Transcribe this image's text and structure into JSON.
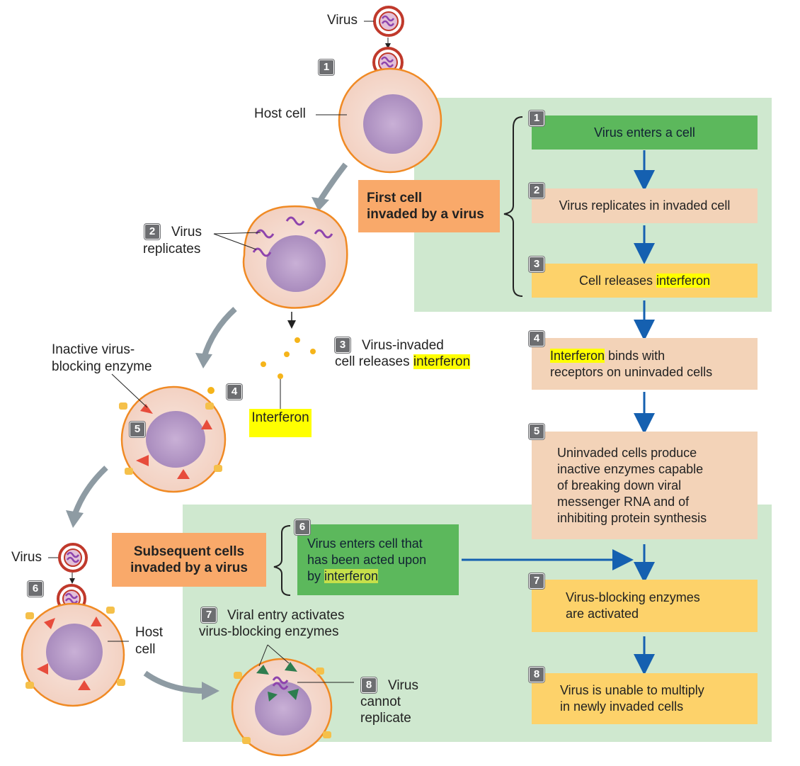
{
  "labels": {
    "virus_top": "Virus",
    "host_cell_top": "Host cell",
    "virus_replicates": [
      "Virus",
      "replicates"
    ],
    "step3_line1": "Virus-invaded",
    "step3_line2": "cell releases",
    "step3_hl": "interferon",
    "inactive_enzyme_line1": "Inactive virus-",
    "inactive_enzyme_line2": "blocking enzyme",
    "interferon": "Interferon",
    "virus_bottom": "Virus",
    "host_cell_bottom": [
      "Host",
      "cell"
    ],
    "step7_line1": "Viral entry activates",
    "step7_line2": "virus-blocking enzymes",
    "step8": [
      "Virus",
      "cannot",
      "replicate"
    ]
  },
  "badges": {
    "b1": "1",
    "b2": "2",
    "b3": "3",
    "b4": "4",
    "b5": "5",
    "b6": "6",
    "b7": "7",
    "b8": "8"
  },
  "groups": {
    "first": [
      "First cell",
      "invaded by a virus"
    ],
    "subsequent": [
      "Subsequent cells",
      "invaded by a virus"
    ]
  },
  "flow": [
    {
      "num": "1",
      "text": "Virus enters a cell"
    },
    {
      "num": "2",
      "text": "Virus replicates in invaded cell"
    },
    {
      "num": "3",
      "pre": "Cell releases ",
      "hl": "interferon"
    },
    {
      "num": "4",
      "hl": "Interferon",
      "post1": " binds with",
      "line2": "receptors on uninvaded cells"
    },
    {
      "num": "5",
      "lines": [
        "Uninvaded cells produce",
        "inactive enzymes capable",
        "of breaking down viral",
        "messenger RNA and of",
        "inhibiting protein synthesis"
      ]
    },
    {
      "num": "6",
      "lines": [
        "Virus enters cell that",
        "has been acted upon"
      ],
      "pre3": "by ",
      "hl3": "interferon"
    },
    {
      "num": "7",
      "lines": [
        "Virus-blocking enzymes",
        "are activated"
      ]
    },
    {
      "num": "8",
      "lines": [
        "Virus is unable to multiply",
        "in newly invaded cells"
      ]
    }
  ],
  "colors": {
    "green_bg": "#cfe8cf",
    "green_box": "#5cb85c",
    "peach_box": "#f3d3b8",
    "yellow_box": "#fdd26a",
    "orange_box": "#f9a96a",
    "arrow_blue": "#1560b0",
    "cell_fill": "#f7ddd2",
    "cell_border": "#f08a24",
    "nucleus": "#b99cc9"
  }
}
